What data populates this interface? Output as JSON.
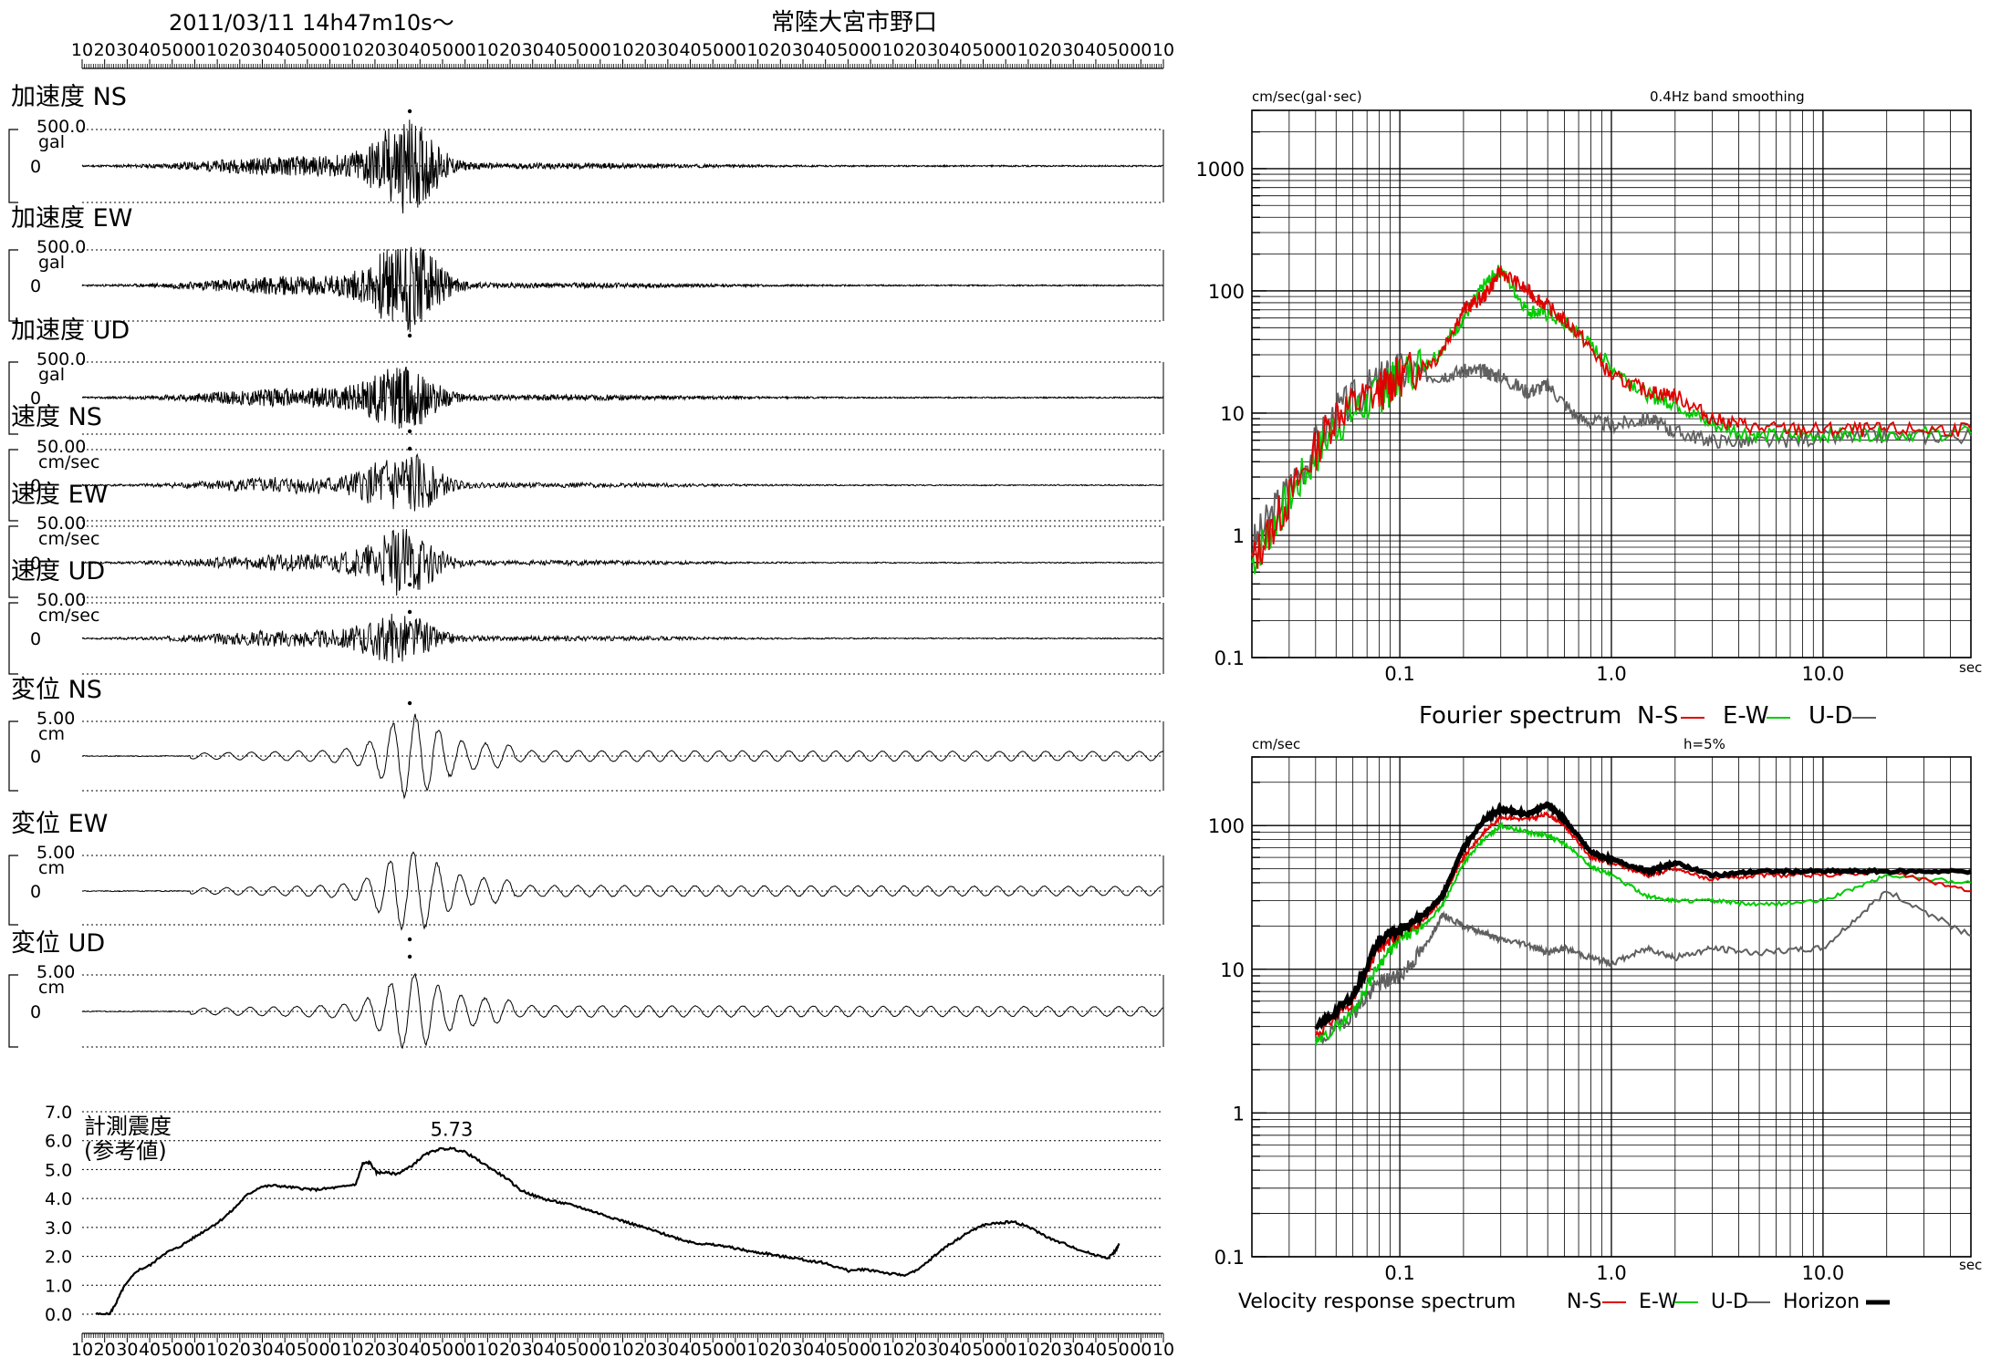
{
  "header": {
    "datetime": "2011/03/11  14h47m10s～",
    "station": "常陸大宮市野口"
  },
  "time_ticks": [
    "10",
    "20",
    "30",
    "40",
    "50",
    "00",
    "10",
    "20",
    "30",
    "40",
    "50",
    "00",
    "10",
    "20",
    "30",
    "40",
    "50",
    "00",
    "10",
    "20",
    "30",
    "40",
    "50",
    "00",
    "10",
    "20",
    "30",
    "40",
    "50",
    "00",
    "10",
    "20",
    "30",
    "40",
    "50",
    "00",
    "10",
    "20",
    "30",
    "40",
    "50",
    "00",
    "10",
    "20",
    "30",
    "40",
    "50",
    "00",
    "10"
  ],
  "traces": [
    {
      "label": "加速度 NS",
      "scale": "500.0",
      "unit": "gal",
      "zero": "0",
      "kind": "acc",
      "peak": 1.0,
      "amp": 0.85,
      "seed": 11,
      "marker": "top"
    },
    {
      "label": "加速度 EW",
      "scale": "500.0",
      "unit": "gal",
      "zero": "0",
      "kind": "acc",
      "peak": 1.02,
      "amp": 0.95,
      "seed": 23,
      "marker": "bottom"
    },
    {
      "label": "加速度 UD",
      "scale": "500.0",
      "unit": "gal",
      "zero": "0",
      "kind": "acc",
      "peak": 1.0,
      "amp": 0.45,
      "seed": 37,
      "marker": "bottom"
    },
    {
      "label": "速度 NS",
      "scale": "50.00",
      "unit": "cm/sec",
      "zero": "0",
      "kind": "vel",
      "peak": 1.0,
      "amp": 0.6,
      "seed": 41,
      "marker": "top"
    },
    {
      "label": "速度 EW",
      "scale": "50.00",
      "unit": "cm/sec",
      "zero": "0",
      "kind": "vel",
      "peak": 1.02,
      "amp": 0.6,
      "seed": 53,
      "marker": "bottom"
    },
    {
      "label": "速度 UD",
      "scale": "50.00",
      "unit": "cm/sec",
      "zero": "0",
      "kind": "vel",
      "peak": 1.0,
      "amp": 0.3,
      "seed": 67,
      "marker": "top"
    },
    {
      "label": "変位 NS",
      "scale": "5.00",
      "unit": "cm",
      "zero": "0",
      "kind": "disp",
      "peak": 1.0,
      "amp": 0.9,
      "seed": 71,
      "marker": "top"
    },
    {
      "label": "変位 EW",
      "scale": "5.00",
      "unit": "cm",
      "zero": "0",
      "kind": "disp",
      "peak": 1.0,
      "amp": 0.9,
      "seed": 83,
      "marker": "bottom"
    },
    {
      "label": "変位 UD",
      "scale": "5.00",
      "unit": "cm",
      "zero": "0",
      "kind": "disp",
      "peak": 1.0,
      "amp": 0.75,
      "seed": 97,
      "marker": "top"
    }
  ],
  "intensity": {
    "title_line1": "計測震度",
    "title_line2": "(参考値)",
    "peak_label": "5.73",
    "yticks": [
      "7.0",
      "6.0",
      "5.0",
      "4.0",
      "3.0",
      "2.0",
      "1.0",
      "0.0"
    ],
    "points_sec": [
      [
        0,
        0
      ],
      [
        10,
        0
      ],
      [
        15,
        0.4
      ],
      [
        20,
        0.9
      ],
      [
        30,
        1.5
      ],
      [
        40,
        1.7
      ],
      [
        50,
        2.1
      ],
      [
        60,
        2.3
      ],
      [
        70,
        2.6
      ],
      [
        80,
        2.9
      ],
      [
        90,
        3.2
      ],
      [
        100,
        3.6
      ],
      [
        110,
        4.1
      ],
      [
        120,
        4.4
      ],
      [
        130,
        4.45
      ],
      [
        140,
        4.4
      ],
      [
        150,
        4.35
      ],
      [
        160,
        4.3
      ],
      [
        170,
        4.35
      ],
      [
        180,
        4.4
      ],
      [
        190,
        4.5
      ],
      [
        195,
        5.2
      ],
      [
        200,
        5.25
      ],
      [
        205,
        4.9
      ],
      [
        210,
        4.9
      ],
      [
        220,
        4.85
      ],
      [
        230,
        5.1
      ],
      [
        240,
        5.5
      ],
      [
        250,
        5.7
      ],
      [
        260,
        5.73
      ],
      [
        270,
        5.6
      ],
      [
        280,
        5.3
      ],
      [
        290,
        5.0
      ],
      [
        300,
        4.7
      ],
      [
        310,
        4.3
      ],
      [
        320,
        4.1
      ],
      [
        330,
        3.95
      ],
      [
        340,
        3.85
      ],
      [
        350,
        3.75
      ],
      [
        360,
        3.6
      ],
      [
        370,
        3.45
      ],
      [
        380,
        3.3
      ],
      [
        390,
        3.15
      ],
      [
        400,
        3.0
      ],
      [
        410,
        2.85
      ],
      [
        420,
        2.7
      ],
      [
        430,
        2.55
      ],
      [
        440,
        2.45
      ],
      [
        450,
        2.4
      ],
      [
        460,
        2.35
      ],
      [
        470,
        2.25
      ],
      [
        480,
        2.15
      ],
      [
        490,
        2.1
      ],
      [
        500,
        2.0
      ],
      [
        510,
        1.95
      ],
      [
        520,
        1.85
      ],
      [
        530,
        1.8
      ],
      [
        540,
        1.65
      ],
      [
        550,
        1.5
      ],
      [
        560,
        1.55
      ],
      [
        570,
        1.5
      ],
      [
        580,
        1.4
      ],
      [
        590,
        1.35
      ],
      [
        600,
        1.5
      ],
      [
        610,
        1.9
      ],
      [
        620,
        2.3
      ],
      [
        630,
        2.6
      ],
      [
        640,
        2.9
      ],
      [
        650,
        3.1
      ],
      [
        660,
        3.15
      ],
      [
        670,
        3.2
      ],
      [
        680,
        3.05
      ],
      [
        690,
        2.8
      ],
      [
        700,
        2.55
      ],
      [
        710,
        2.4
      ],
      [
        720,
        2.2
      ],
      [
        730,
        2.05
      ],
      [
        740,
        1.95
      ],
      [
        745,
        2.2
      ],
      [
        748,
        2.45
      ]
    ]
  },
  "fourier": {
    "top_label": "cm/sec(gal･sec)",
    "note": "0.4Hz band smoothing",
    "yticks": [
      "1000",
      "100",
      "10",
      "1",
      "0.1"
    ],
    "xticks": [
      "0.1",
      "1.0",
      "10.0"
    ],
    "xunit": "sec",
    "legend_title": "Fourier spectrum",
    "legend": [
      {
        "name": "N-S",
        "color": "#e00000"
      },
      {
        "name": "E-W",
        "color": "#00cc00"
      },
      {
        "name": "U-D",
        "color": "#606060"
      }
    ]
  },
  "response": {
    "top_label": "cm/sec",
    "note": "h=5%",
    "yticks": [
      "100",
      "10",
      "1",
      "0.1"
    ],
    "xticks": [
      "0.1",
      "1.0",
      "10.0"
    ],
    "xunit": "sec",
    "legend_title": "Velocity response spectrum",
    "legend": [
      {
        "name": "N-S",
        "color": "#e00000"
      },
      {
        "name": "E-W",
        "color": "#00cc00"
      },
      {
        "name": "U-D",
        "color": "#606060"
      },
      {
        "name": "Horizon",
        "color": "#000000"
      }
    ]
  },
  "chart_data": [
    {
      "type": "line",
      "title": "計測震度 (参考値)",
      "ylim": [
        0,
        7
      ],
      "x_unit": "sec",
      "series": [
        {
          "values": "see intensity.points_sec"
        }
      ],
      "peak": 5.73
    },
    {
      "type": "line",
      "title": "Fourier spectrum",
      "scale": "log-log",
      "xlim": [
        0.02,
        50
      ],
      "ylim": [
        0.1,
        3000
      ],
      "series": [
        {
          "name": "N-S",
          "x": [
            0.02,
            0.03,
            0.05,
            0.08,
            0.1,
            0.15,
            0.2,
            0.25,
            0.3,
            0.4,
            0.5,
            0.7,
            1.0,
            1.5,
            2.0,
            3.0,
            5.0,
            10.0,
            20.0,
            50.0
          ],
          "values": [
            0.6,
            2,
            10,
            15,
            20,
            28,
            70,
            90,
            145,
            100,
            75,
            45,
            20,
            15,
            14,
            9,
            7.5,
            7.3,
            7.3,
            7.4
          ]
        },
        {
          "name": "E-W",
          "x": [
            0.02,
            0.03,
            0.05,
            0.08,
            0.1,
            0.15,
            0.2,
            0.25,
            0.3,
            0.4,
            0.5,
            0.7,
            1.0,
            1.5,
            2.0,
            3.0,
            5.0,
            10.0,
            20.0,
            50.0
          ],
          "values": [
            0.6,
            2,
            8,
            14,
            20,
            30,
            60,
            110,
            150,
            70,
            65,
            45,
            24,
            14,
            12,
            8,
            6.5,
            6.7,
            6.8,
            6.8
          ]
        },
        {
          "name": "U-D",
          "x": [
            0.02,
            0.03,
            0.05,
            0.08,
            0.1,
            0.15,
            0.2,
            0.25,
            0.3,
            0.4,
            0.5,
            0.7,
            1.0,
            1.5,
            2.0,
            3.0,
            5.0,
            10.0,
            20.0,
            50.0
          ],
          "values": [
            0.8,
            2.5,
            10,
            18,
            22,
            20,
            22,
            22,
            20,
            15,
            17,
            9,
            8,
            9,
            7,
            6,
            5.8,
            6.3,
            6.5,
            6.5
          ]
        }
      ]
    },
    {
      "type": "line",
      "title": "Velocity response spectrum",
      "scale": "log-log",
      "xlim": [
        0.02,
        50
      ],
      "ylim": [
        0.1,
        300
      ],
      "series": [
        {
          "name": "N-S",
          "x": [
            0.04,
            0.06,
            0.08,
            0.1,
            0.13,
            0.16,
            0.2,
            0.25,
            0.3,
            0.4,
            0.5,
            0.6,
            0.8,
            1.0,
            1.5,
            2.0,
            3.0,
            5.0,
            10.0,
            20.0,
            50.0
          ],
          "values": [
            3.5,
            6,
            14,
            18,
            22,
            32,
            60,
            90,
            115,
            110,
            120,
            100,
            60,
            55,
            45,
            50,
            42,
            45,
            45,
            48,
            35
          ]
        },
        {
          "name": "E-W",
          "x": [
            0.04,
            0.06,
            0.08,
            0.1,
            0.13,
            0.16,
            0.2,
            0.25,
            0.3,
            0.4,
            0.5,
            0.6,
            0.8,
            1.0,
            1.5,
            2.0,
            3.0,
            5.0,
            10.0,
            20.0,
            50.0
          ],
          "values": [
            3.0,
            5,
            11,
            16,
            20,
            28,
            55,
            80,
            100,
            90,
            85,
            75,
            52,
            45,
            32,
            30,
            30,
            28,
            30,
            45,
            40
          ]
        },
        {
          "name": "U-D",
          "x": [
            0.04,
            0.06,
            0.08,
            0.1,
            0.13,
            0.16,
            0.2,
            0.25,
            0.3,
            0.4,
            0.5,
            0.6,
            0.8,
            1.0,
            1.5,
            2.0,
            3.0,
            5.0,
            10.0,
            20.0,
            50.0
          ],
          "values": [
            3.0,
            5,
            8,
            9,
            14,
            24,
            20,
            18,
            16,
            15,
            13,
            14,
            12,
            11,
            14,
            12,
            14,
            13,
            14,
            35,
            17
          ]
        },
        {
          "name": "Horizon",
          "x": [
            0.04,
            0.06,
            0.08,
            0.1,
            0.13,
            0.16,
            0.2,
            0.25,
            0.3,
            0.4,
            0.5,
            0.6,
            0.8,
            1.0,
            1.5,
            2.0,
            3.0,
            5.0,
            10.0,
            20.0,
            50.0
          ],
          "values": [
            3.8,
            6.5,
            16,
            19,
            24,
            33,
            70,
            110,
            130,
            120,
            140,
            110,
            65,
            58,
            48,
            55,
            45,
            48,
            48,
            48,
            48
          ]
        }
      ]
    }
  ]
}
